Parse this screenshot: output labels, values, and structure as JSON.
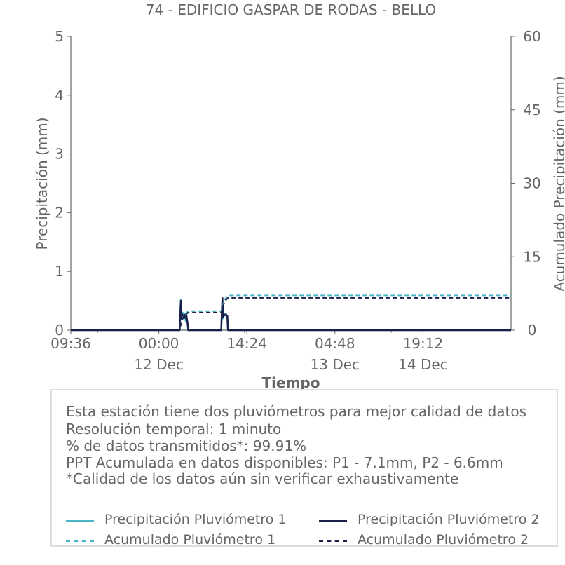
{
  "chart_data": {
    "type": "line",
    "title": "74 - EDIFICIO GASPAR DE RODAS - BELLO",
    "xlabel": "Tiempo",
    "ylabel": "Precipitación (mm)",
    "ylabel_right": "Acumulado Precipitación (mm)",
    "x_hours_range": [
      0,
      72
    ],
    "ylim": [
      0,
      5
    ],
    "ylim_right": [
      0,
      60
    ],
    "y_ticks": [
      "0",
      "1",
      "2",
      "3",
      "4",
      "5"
    ],
    "y_ticks_right": [
      "0",
      "15",
      "30",
      "45",
      "60"
    ],
    "x_ticks": [
      {
        "hours": 0,
        "label": "09:36",
        "date": ""
      },
      {
        "hours": 14.4,
        "label": "00:00",
        "date": "12 Dec"
      },
      {
        "hours": 28.8,
        "label": "14:24",
        "date": ""
      },
      {
        "hours": 43.2,
        "label": "04:48",
        "date": "13 Dec"
      },
      {
        "hours": 57.6,
        "label": "19:12",
        "date": "14 Dec"
      }
    ],
    "series": [
      {
        "name": "Precipitación Pluviómetro 1",
        "color": "#4ab5c4",
        "axis": "left",
        "style": "solid",
        "x": [
          0,
          17.8,
          17.9,
          18.0,
          18.1,
          18.2,
          18.3,
          18.5,
          18.6,
          18.8,
          18.9,
          19.1,
          19.2,
          24.6,
          24.7,
          24.8,
          24.9,
          25.0,
          25.1,
          25.3,
          25.4,
          25.6,
          25.7,
          72
        ],
        "values": [
          0,
          0,
          0.3,
          0.52,
          0.2,
          0.25,
          0.3,
          0.2,
          0.28,
          0.15,
          0.27,
          0.1,
          0,
          0,
          0.3,
          0.5,
          0.2,
          0.28,
          0.27,
          0.25,
          0.28,
          0.2,
          0,
          0
        ]
      },
      {
        "name": "Precipitación Pluviómetro 2",
        "color": "#1b1f4a",
        "axis": "left",
        "style": "solid",
        "x": [
          0,
          17.8,
          17.9,
          18.0,
          18.1,
          18.2,
          18.3,
          18.5,
          18.6,
          18.8,
          18.9,
          19.1,
          19.2,
          24.6,
          24.7,
          24.8,
          24.9,
          25.0,
          25.1,
          25.3,
          25.4,
          25.6,
          25.7,
          72
        ],
        "values": [
          0,
          0,
          0.25,
          0.5,
          0.18,
          0.27,
          0.26,
          0.22,
          0.26,
          0.2,
          0.25,
          0.12,
          0,
          0,
          0.28,
          0.55,
          0.22,
          0.26,
          0.25,
          0.27,
          0.26,
          0.24,
          0,
          0
        ]
      },
      {
        "name": "Acumulado Pluviómetro 1",
        "color": "#4ab5c4",
        "axis": "right",
        "style": "dashed",
        "x": [
          0,
          17.8,
          18.1,
          18.6,
          19.2,
          24.6,
          24.9,
          25.3,
          25.7,
          72
        ],
        "values": [
          0,
          0,
          2.0,
          3.2,
          3.9,
          3.9,
          5.3,
          6.5,
          7.1,
          7.1
        ]
      },
      {
        "name": "Acumulado Pluviómetro 2",
        "color": "#1b1f4a",
        "axis": "right",
        "style": "dashed",
        "x": [
          0,
          17.8,
          18.1,
          18.6,
          19.2,
          24.6,
          24.9,
          25.3,
          25.7,
          72
        ],
        "values": [
          0,
          0,
          1.9,
          3.0,
          3.6,
          3.6,
          5.0,
          6.1,
          6.6,
          6.6
        ]
      }
    ]
  },
  "info": {
    "lines": [
      "Esta estación tiene dos pluviómetros para mejor calidad de datos",
      "Resolución temporal: 1 minuto",
      "% de datos transmitidos*: 99.91%",
      "PPT Acumulada en datos disponibles: P1 - 7.1mm, P2 - 6.6mm",
      "*Calidad de los datos aún sin verificar exhaustivamente"
    ]
  },
  "legend": {
    "items": [
      {
        "label": "Precipitación Pluviómetro 1",
        "color": "#4ab5c4",
        "style": "solid"
      },
      {
        "label": "Precipitación Pluviómetro 2",
        "color": "#1b1f4a",
        "style": "solid"
      },
      {
        "label": "Acumulado Pluviómetro 1",
        "color": "#4ab5c4",
        "style": "dashed"
      },
      {
        "label": "Acumulado Pluviómetro 2",
        "color": "#1b1f4a",
        "style": "dashed"
      }
    ]
  }
}
